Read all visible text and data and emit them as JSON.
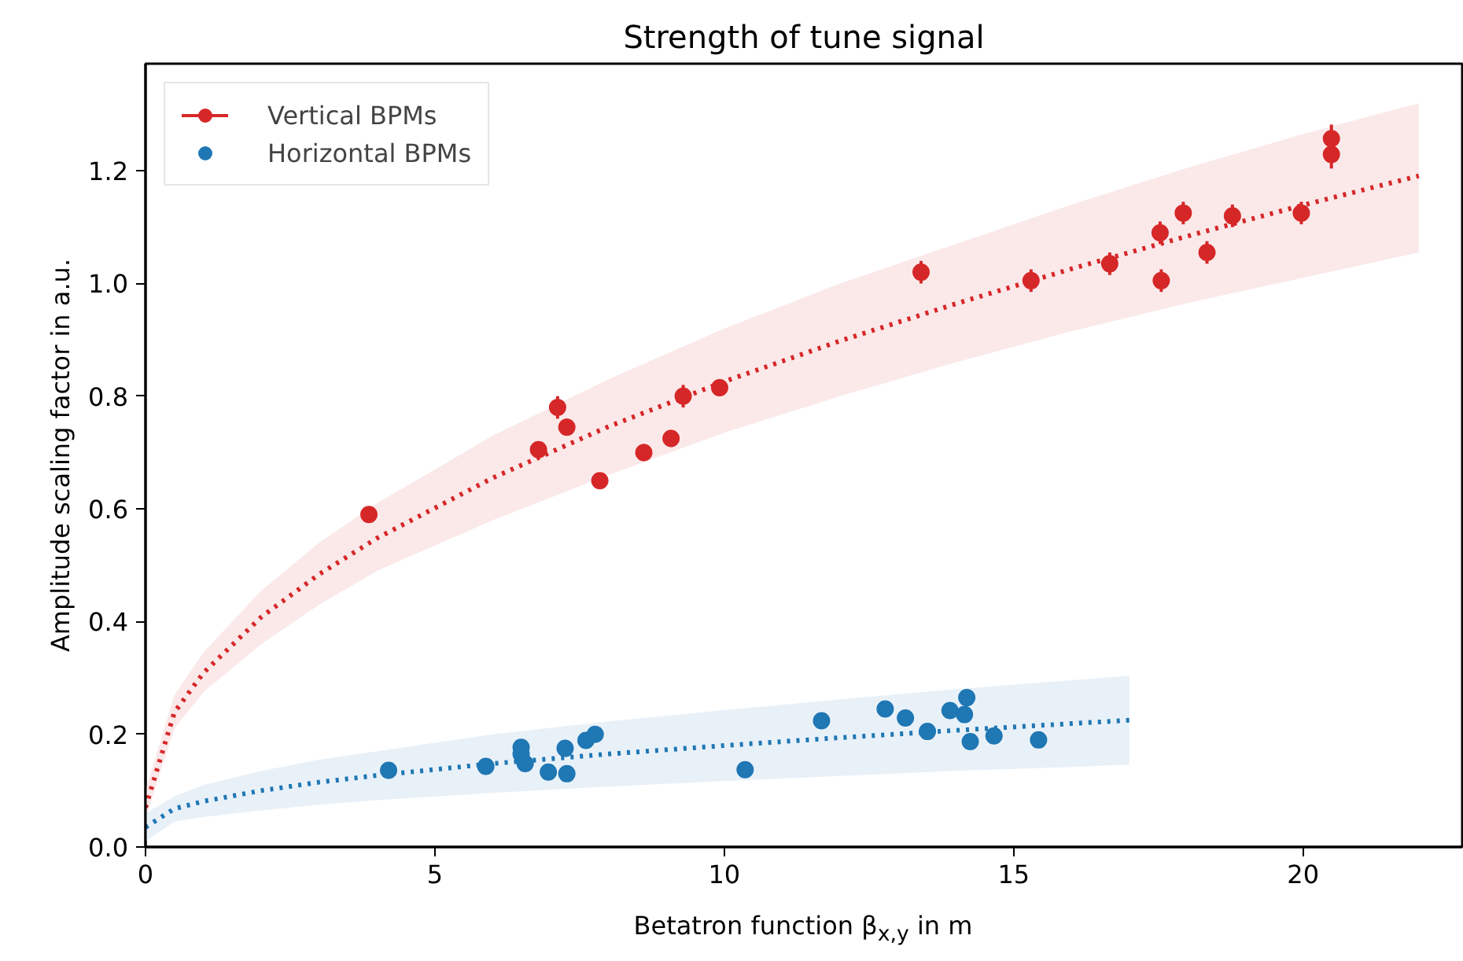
{
  "chart_data": {
    "type": "scatter",
    "title": "Strength of tune signal",
    "xlabel": "Betatron function β$_{x,y}$ in m",
    "ylabel": "Amplitude scaling factor in a.u.",
    "xlim": [
      0,
      22.75
    ],
    "ylim": [
      0,
      1.39
    ],
    "xticks": [
      0,
      5,
      10,
      15,
      20
    ],
    "yticks": [
      {
        "value": 0,
        "label": "0.0"
      },
      {
        "value": 0.2,
        "label": "0.2"
      },
      {
        "value": 0.4,
        "label": "0.4"
      },
      {
        "value": 0.6,
        "label": "0.6"
      },
      {
        "value": 0.8,
        "label": "0.8"
      },
      {
        "value": 1.0,
        "label": "1.0"
      },
      {
        "value": 1.2,
        "label": "1.2"
      }
    ],
    "grid": false,
    "legend": "top left",
    "series": [
      {
        "name": "Vertical BPMs",
        "marker": "circle",
        "color": "#d62728",
        "x": [
          3.86,
          6.79,
          7.12,
          7.28,
          7.85,
          8.61,
          9.08,
          9.29,
          9.92,
          13.4,
          15.3,
          16.66,
          17.53,
          17.55,
          17.93,
          18.34,
          18.78,
          19.97,
          20.49,
          20.49
        ],
        "values": [
          0.59,
          0.705,
          0.78,
          0.745,
          0.65,
          0.7,
          0.725,
          0.8,
          0.815,
          1.02,
          1.005,
          1.035,
          1.09,
          1.005,
          1.125,
          1.055,
          1.12,
          1.125,
          1.257,
          1.229
        ],
        "errors": [
          0.01,
          0.015,
          0.02,
          0.015,
          0.01,
          0.015,
          0.015,
          0.02,
          0.015,
          0.02,
          0.02,
          0.02,
          0.02,
          0.02,
          0.02,
          0.02,
          0.02,
          0.02,
          0.025,
          0.025
        ]
      },
      {
        "name": "Horizontal BPMs",
        "marker": "circle",
        "color": "#1f77b4",
        "x": [
          4.2,
          5.88,
          6.49,
          6.49,
          6.56,
          6.96,
          7.25,
          7.28,
          7.61,
          7.77,
          10.36,
          11.68,
          12.78,
          13.13,
          13.51,
          13.9,
          14.15,
          14.19,
          14.25,
          14.66,
          15.43
        ],
        "values": [
          0.136,
          0.143,
          0.177,
          0.165,
          0.148,
          0.133,
          0.175,
          0.13,
          0.189,
          0.2,
          0.137,
          0.224,
          0.245,
          0.229,
          0.205,
          0.242,
          0.235,
          0.265,
          0.187,
          0.197,
          0.19
        ]
      },
      {
        "type": "line",
        "color": "#d62728",
        "line_style": "dotted",
        "marker": "none",
        "x": [
          0,
          0.5,
          1,
          2,
          3,
          4,
          6,
          8,
          10,
          12,
          14,
          16,
          18,
          20,
          22
        ],
        "values": [
          0.07,
          0.239,
          0.309,
          0.408,
          0.484,
          0.548,
          0.655,
          0.746,
          0.826,
          0.898,
          0.964,
          1.026,
          1.084,
          1.139,
          1.191
        ],
        "lower": [
          0.05,
          0.21,
          0.275,
          0.36,
          0.43,
          0.49,
          0.58,
          0.66,
          0.735,
          0.8,
          0.86,
          0.915,
          0.965,
          1.01,
          1.055
        ],
        "upper": [
          0.1,
          0.27,
          0.345,
          0.455,
          0.54,
          0.61,
          0.73,
          0.83,
          0.92,
          1.0,
          1.07,
          1.14,
          1.205,
          1.265,
          1.32
        ]
      },
      {
        "type": "line",
        "color": "#1f77b4",
        "line_style": "dotted",
        "marker": "none",
        "x": [
          0,
          0.5,
          1,
          2,
          3,
          4,
          6,
          8,
          10,
          12,
          14,
          16,
          17
        ],
        "values": [
          0.035,
          0.068,
          0.081,
          0.1,
          0.115,
          0.127,
          0.148,
          0.165,
          0.18,
          0.194,
          0.207,
          0.219,
          0.225
        ],
        "lower": [
          0.01,
          0.045,
          0.053,
          0.065,
          0.075,
          0.083,
          0.096,
          0.107,
          0.117,
          0.126,
          0.135,
          0.142,
          0.146
        ],
        "upper": [
          0.06,
          0.09,
          0.11,
          0.135,
          0.155,
          0.17,
          0.2,
          0.223,
          0.243,
          0.262,
          0.28,
          0.296,
          0.304
        ]
      }
    ]
  }
}
